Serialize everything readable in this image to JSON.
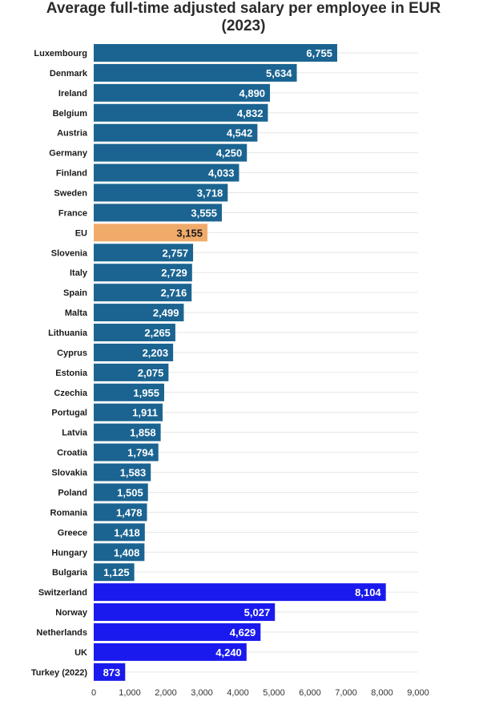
{
  "chart_data": {
    "type": "bar",
    "orientation": "horizontal",
    "title_lines": [
      "Average full-time adjusted salary per employee in EUR",
      "(2023)"
    ],
    "categories": [
      "Luxembourg",
      "Denmark",
      "Ireland",
      "Belgium",
      "Austria",
      "Germany",
      "Finland",
      "Sweden",
      "France",
      "EU",
      "Slovenia",
      "Italy",
      "Spain",
      "Malta",
      "Lithuania",
      "Cyprus",
      "Estonia",
      "Czechia",
      "Portugal",
      "Latvia",
      "Croatia",
      "Slovakia",
      "Poland",
      "Romania",
      "Greece",
      "Hungary",
      "Bulgaria",
      "Switzerland",
      "Norway",
      "Netherlands",
      "UK",
      "Turkey (2022)"
    ],
    "values": [
      6755,
      5634,
      4890,
      4832,
      4542,
      4250,
      4033,
      3718,
      3555,
      3155,
      2757,
      2729,
      2716,
      2499,
      2265,
      2203,
      2075,
      1955,
      1911,
      1858,
      1794,
      1583,
      1505,
      1478,
      1418,
      1408,
      1125,
      8104,
      5027,
      4629,
      4240,
      873
    ],
    "value_labels": [
      "6,755",
      "5,634",
      "4,890",
      "4,832",
      "4,542",
      "4,250",
      "4,033",
      "3,718",
      "3,555",
      "3,155",
      "2,757",
      "2,729",
      "2,716",
      "2,499",
      "2,265",
      "2,203",
      "2,075",
      "1,955",
      "1,911",
      "1,858",
      "1,794",
      "1,583",
      "1,505",
      "1,478",
      "1,418",
      "1,408",
      "1,125",
      "8,104",
      "5,027",
      "4,629",
      "4,240",
      "873"
    ],
    "groups": [
      "eu_member",
      "eu_member",
      "eu_member",
      "eu_member",
      "eu_member",
      "eu_member",
      "eu_member",
      "eu_member",
      "eu_member",
      "eu_average",
      "eu_member",
      "eu_member",
      "eu_member",
      "eu_member",
      "eu_member",
      "eu_member",
      "eu_member",
      "eu_member",
      "eu_member",
      "eu_member",
      "eu_member",
      "eu_member",
      "eu_member",
      "eu_member",
      "eu_member",
      "eu_member",
      "eu_member",
      "non_eu",
      "non_eu",
      "non_eu",
      "non_eu",
      "non_eu"
    ],
    "colors": {
      "eu_member": "#1b6491",
      "eu_average": "#f0ab6b",
      "non_eu": "#1a1aee"
    },
    "label_colors": {
      "eu_member": "#ffffff",
      "eu_average": "#1a1a1a",
      "non_eu": "#ffffff"
    },
    "xlim": [
      0,
      9000
    ],
    "xticks": [
      0,
      1000,
      2000,
      3000,
      4000,
      5000,
      6000,
      7000,
      8000,
      9000
    ],
    "xtick_labels": [
      "0",
      "1,000",
      "2,000",
      "3,000",
      "4,000",
      "5,000",
      "6,000",
      "7,000",
      "8,000",
      "9,000"
    ],
    "xlabel": "",
    "ylabel": "",
    "grid": true,
    "legend": "none"
  }
}
